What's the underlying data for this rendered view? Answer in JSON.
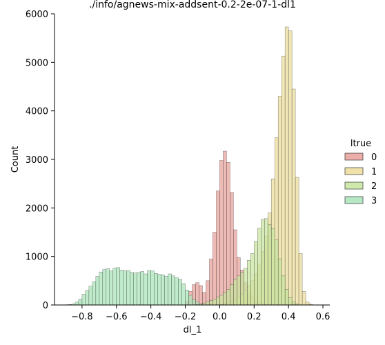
{
  "chart_data": {
    "type": "histogram",
    "title": "./info/agnews-mix-addsent-0.2-2e-07-1-dl1",
    "xlabel": "dl_1",
    "ylabel": "Count",
    "xlim": [
      -0.96,
      0.64
    ],
    "ylim": [
      0,
      6000
    ],
    "xticks": [
      -0.8,
      -0.6,
      -0.4,
      -0.2,
      0.0,
      0.2,
      0.4,
      0.6
    ],
    "xtick_labels": [
      "−0.8",
      "−0.6",
      "−0.4",
      "−0.2",
      "0.0",
      "0.2",
      "0.4",
      "0.6"
    ],
    "yticks": [
      0,
      1000,
      2000,
      3000,
      4000,
      5000,
      6000
    ],
    "ytick_labels": [
      "0",
      "1000",
      "2000",
      "3000",
      "4000",
      "5000",
      "6000"
    ],
    "bin_width": 0.02,
    "grid": false,
    "legend": {
      "title": "ltrue",
      "placement": "right",
      "entries": [
        "0",
        "1",
        "2",
        "3"
      ]
    },
    "series": [
      {
        "name": "0",
        "color": "#e8a09a",
        "x_start": -0.2,
        "values": [
          80,
          280,
          420,
          460,
          400,
          260,
          500,
          950,
          1500,
          2350,
          2980,
          3170,
          2940,
          2320,
          1550,
          980,
          720,
          460,
          250,
          180,
          110,
          60,
          40,
          20,
          10
        ]
      },
      {
        "name": "1",
        "color": "#ecdc98",
        "x_start": 0.0,
        "values": [
          10,
          20,
          40,
          60,
          100,
          160,
          220,
          300,
          400,
          500,
          640,
          840,
          1100,
          1420,
          1900,
          2600,
          3450,
          4300,
          5130,
          5730,
          5650,
          4450,
          2630,
          1060,
          280,
          60,
          15
        ]
      },
      {
        "name": "2",
        "color": "#c7e59e",
        "x_start": -0.14,
        "values": [
          10,
          20,
          40,
          60,
          90,
          120,
          160,
          200,
          260,
          320,
          420,
          530,
          600,
          670,
          760,
          920,
          1060,
          1310,
          1580,
          1760,
          1780,
          1660,
          1570,
          1340,
          950,
          600,
          320,
          150,
          60,
          20
        ]
      },
      {
        "name": "3",
        "color": "#a9e4b9",
        "x_start": -0.9,
        "values": [
          5,
          10,
          20,
          60,
          120,
          220,
          300,
          390,
          480,
          590,
          680,
          730,
          750,
          700,
          760,
          770,
          720,
          700,
          710,
          670,
          660,
          670,
          690,
          640,
          710,
          700,
          650,
          630,
          620,
          590,
          640,
          600,
          560,
          530,
          440,
          310,
          200,
          120,
          60,
          20
        ]
      }
    ]
  }
}
